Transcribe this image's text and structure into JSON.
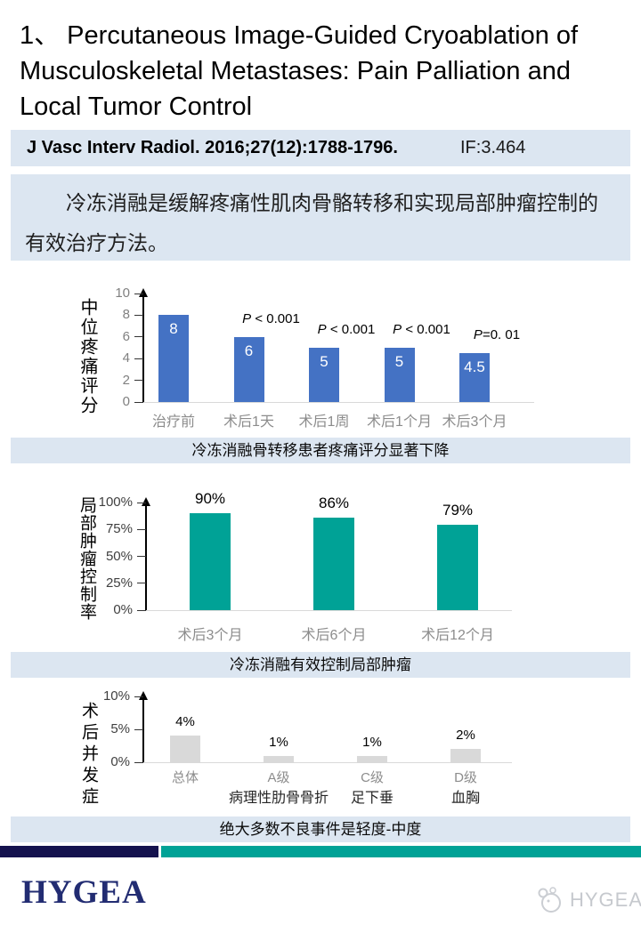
{
  "slide": {
    "title_lines": [
      "1、 Percutaneous Image-Guided Cryoablation of",
      "Musculoskeletal Metastases: Pain Palliation and",
      "Local Tumor Control"
    ],
    "citation": "J Vasc Interv Radiol. 2016;27(12):1788-1796.",
    "impact_factor": "IF:3.464",
    "summary": "冷冻消融是缓解疼痛性肌肉骨骼转移和实现局部肿瘤控制的有效治疗方法。",
    "footer_logo": "HYGEA",
    "watermark_text": "HYGEA"
  },
  "colors": {
    "panel_bg": "#DCE6F1",
    "pain_bar_blue": "#4472C4",
    "tumor_bar_teal": "#00A296",
    "complication_bar_gray": "#D9D9D9",
    "footer_navy": "#14124E",
    "footer_teal": "#00A296",
    "logo_navy": "#222C72"
  },
  "chart_data": [
    {
      "type": "bar",
      "ylabel": "中位疼痛评分",
      "categories": [
        "治疗前",
        "术后1天",
        "术后1周",
        "术后1个月",
        "术后3个月"
      ],
      "values": [
        8,
        6,
        5,
        5,
        4.5
      ],
      "value_labels": [
        "8",
        "6",
        "5",
        "5",
        "4.5"
      ],
      "p_labels": [
        "",
        "P < 0.001",
        "P < 0.001",
        "P < 0.001",
        "P=0. 01"
      ],
      "ylim": [
        0,
        10
      ],
      "yticks": [
        0,
        2,
        4,
        6,
        8,
        10
      ],
      "ytick_labels": [
        "0",
        "2",
        "4",
        "6",
        "8",
        "10"
      ],
      "bar_color": "#4472C4",
      "legend": "none",
      "grid": false,
      "caption": "冷冻消融骨转移患者疼痛评分显著下降"
    },
    {
      "type": "bar",
      "ylabel": "局部肿瘤控制率",
      "categories": [
        "术后3个月",
        "术后6个月",
        "术后12个月"
      ],
      "values": [
        90,
        86,
        79
      ],
      "value_labels": [
        "90%",
        "86%",
        "79%"
      ],
      "ylim": [
        0,
        100
      ],
      "yticks": [
        0,
        25,
        50,
        75,
        100
      ],
      "ytick_labels": [
        "0%",
        "25%",
        "50%",
        "75%",
        "100%"
      ],
      "bar_color": "#00A296",
      "legend": "none",
      "grid": false,
      "caption": "冷冻消融有效控制局部肿瘤"
    },
    {
      "type": "bar",
      "ylabel": "术后并发症",
      "categories": [
        "总体",
        "A级",
        "C级",
        "D级"
      ],
      "category_sublabels": [
        "",
        "病理性肋骨骨折",
        "足下垂",
        "血胸"
      ],
      "values": [
        4,
        1,
        1,
        2
      ],
      "value_labels": [
        "4%",
        "1%",
        "1%",
        "2%"
      ],
      "ylim": [
        0,
        10
      ],
      "yticks": [
        0,
        5,
        10
      ],
      "ytick_labels": [
        "0%",
        "5%",
        "10%"
      ],
      "bar_color": "#D9D9D9",
      "legend": "none",
      "grid": false,
      "caption": "绝大多数不良事件是轻度-中度"
    }
  ]
}
